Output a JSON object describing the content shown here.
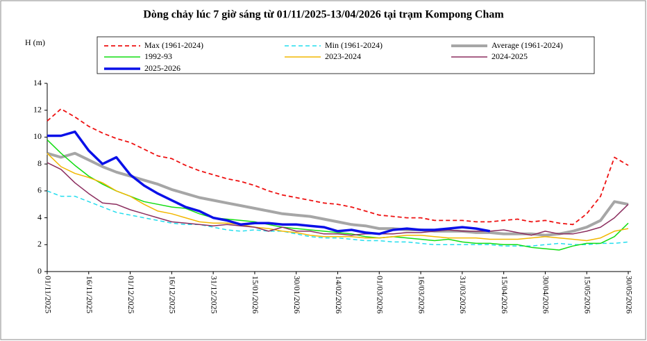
{
  "chart_data": {
    "type": "line",
    "title": "Dòng chảy lúc 7 giờ sáng từ 01/11/2025-13/04/2026 tại trạm Kompong Cham",
    "y_label": "H (m)",
    "x": [
      0,
      5,
      10,
      15,
      20,
      25,
      30,
      35,
      40,
      45,
      50,
      55,
      60,
      65,
      70,
      75,
      80,
      85,
      90,
      95,
      100,
      105,
      110,
      115,
      120,
      125,
      130,
      135,
      140,
      145,
      150,
      155,
      160,
      165,
      170,
      175,
      180,
      185,
      190,
      195,
      200,
      205,
      210
    ],
    "xlim": [
      0,
      210
    ],
    "xticks": [
      {
        "value": 0,
        "label": "01/11/2025"
      },
      {
        "value": 15,
        "label": "16/11/2025"
      },
      {
        "value": 30,
        "label": "01/12/2025"
      },
      {
        "value": 45,
        "label": "16/12/2025"
      },
      {
        "value": 60,
        "label": "31/12/2025"
      },
      {
        "value": 75,
        "label": "15/01/2026"
      },
      {
        "value": 90,
        "label": "30/01/2026"
      },
      {
        "value": 105,
        "label": "14/02/2026"
      },
      {
        "value": 120,
        "label": "01/03/2026"
      },
      {
        "value": 135,
        "label": "16/03/2026"
      },
      {
        "value": 150,
        "label": "31/03/2026"
      },
      {
        "value": 165,
        "label": "15/04/2026"
      },
      {
        "value": 180,
        "label": "30/04/2026"
      },
      {
        "value": 195,
        "label": "15/05/2026"
      },
      {
        "value": 210,
        "label": "30/05/2026"
      }
    ],
    "ylim": [
      0,
      14
    ],
    "yticks": [
      0,
      2,
      4,
      6,
      8,
      10,
      12,
      14
    ],
    "grid": false,
    "series": [
      {
        "name": "Max (1961-2024)",
        "color": "#ee1111",
        "dash": true,
        "line_width": 1.8,
        "values": [
          11.2,
          12.1,
          11.5,
          10.8,
          10.3,
          9.9,
          9.6,
          9.1,
          8.6,
          8.4,
          7.9,
          7.5,
          7.2,
          6.9,
          6.7,
          6.4,
          6.0,
          5.7,
          5.5,
          5.3,
          5.1,
          5.0,
          4.8,
          4.5,
          4.2,
          4.1,
          4.0,
          4.0,
          3.8,
          3.8,
          3.8,
          3.7,
          3.7,
          3.8,
          3.9,
          3.7,
          3.8,
          3.6,
          3.5,
          4.3,
          5.6,
          8.5,
          7.9
        ]
      },
      {
        "name": "Min (1961-2024)",
        "color": "#22ddee",
        "dash": true,
        "line_width": 1.5,
        "values": [
          6.0,
          5.6,
          5.6,
          5.2,
          4.8,
          4.4,
          4.2,
          4.0,
          3.8,
          3.6,
          3.5,
          3.5,
          3.3,
          3.1,
          3.0,
          3.1,
          3.0,
          3.0,
          2.8,
          2.6,
          2.5,
          2.5,
          2.4,
          2.3,
          2.3,
          2.2,
          2.2,
          2.1,
          2.0,
          2.0,
          2.0,
          2.0,
          2.0,
          1.9,
          1.9,
          1.9,
          2.0,
          2.1,
          2.0,
          2.0,
          2.1,
          2.1,
          2.2
        ]
      },
      {
        "name": "Average (1961-2024)",
        "color": "#a6a6a6",
        "dash": false,
        "line_width": 4,
        "values": [
          8.8,
          8.5,
          8.8,
          8.3,
          7.8,
          7.4,
          7.1,
          6.8,
          6.5,
          6.1,
          5.8,
          5.5,
          5.3,
          5.1,
          4.9,
          4.7,
          4.5,
          4.3,
          4.2,
          4.1,
          3.9,
          3.7,
          3.5,
          3.4,
          3.2,
          3.2,
          3.1,
          3.1,
          3.0,
          3.0,
          3.0,
          2.9,
          2.9,
          2.8,
          2.8,
          2.8,
          2.7,
          2.8,
          3.0,
          3.3,
          3.8,
          5.2,
          5.0
        ]
      },
      {
        "name": "1992-93",
        "color": "#11dd11",
        "dash": false,
        "line_width": 1.5,
        "values": [
          9.8,
          8.8,
          7.9,
          7.1,
          6.5,
          6.0,
          5.6,
          5.2,
          5.0,
          4.8,
          4.7,
          4.3,
          4.0,
          3.9,
          3.8,
          3.7,
          3.5,
          3.3,
          3.2,
          3.1,
          3.0,
          2.9,
          2.8,
          2.6,
          2.5,
          2.6,
          2.5,
          2.4,
          2.3,
          2.4,
          2.2,
          2.1,
          2.1,
          2.0,
          2.0,
          1.8,
          1.7,
          1.6,
          1.9,
          2.1,
          2.1,
          2.6,
          3.6
        ]
      },
      {
        "name": "2023-2024",
        "color": "#f2b700",
        "dash": false,
        "line_width": 1.5,
        "values": [
          8.8,
          7.8,
          7.3,
          7.0,
          6.6,
          6.0,
          5.6,
          5.0,
          4.5,
          4.3,
          4.0,
          3.7,
          3.6,
          3.6,
          3.5,
          3.3,
          3.2,
          3.0,
          2.9,
          2.7,
          2.6,
          2.6,
          2.6,
          2.5,
          2.5,
          2.6,
          2.7,
          2.7,
          2.6,
          2.5,
          2.5,
          2.5,
          2.4,
          2.4,
          2.4,
          2.5,
          2.6,
          2.5,
          2.4,
          2.3,
          2.5,
          3.0,
          3.2
        ]
      },
      {
        "name": "2024-2025",
        "color": "#8b2d5e",
        "dash": false,
        "line_width": 1.5,
        "values": [
          8.1,
          7.6,
          6.6,
          5.8,
          5.1,
          5.0,
          4.6,
          4.3,
          4.0,
          3.7,
          3.6,
          3.5,
          3.4,
          3.5,
          3.4,
          3.3,
          3.0,
          3.3,
          3.0,
          3.0,
          2.8,
          2.8,
          2.7,
          2.8,
          2.8,
          2.8,
          2.9,
          2.9,
          3.0,
          3.1,
          3.0,
          3.0,
          3.0,
          3.1,
          2.9,
          2.7,
          3.0,
          2.8,
          2.8,
          3.0,
          3.3,
          4.0,
          5.0
        ]
      },
      {
        "name": "2025-2026",
        "color": "#0a10e8",
        "dash": false,
        "line_width": 3.5,
        "values": [
          10.1,
          10.1,
          10.4,
          9.0,
          8.0,
          8.5,
          7.2,
          6.4,
          5.8,
          5.3,
          4.8,
          4.5,
          4.0,
          3.8,
          3.5,
          3.6,
          3.6,
          3.5,
          3.5,
          3.4,
          3.3,
          3.0,
          3.1,
          2.9,
          2.8,
          3.1,
          3.2,
          3.1,
          3.1,
          3.2,
          3.3,
          3.2,
          3.0,
          null,
          null,
          null,
          null,
          null,
          null,
          null,
          null,
          null,
          null
        ]
      }
    ]
  }
}
